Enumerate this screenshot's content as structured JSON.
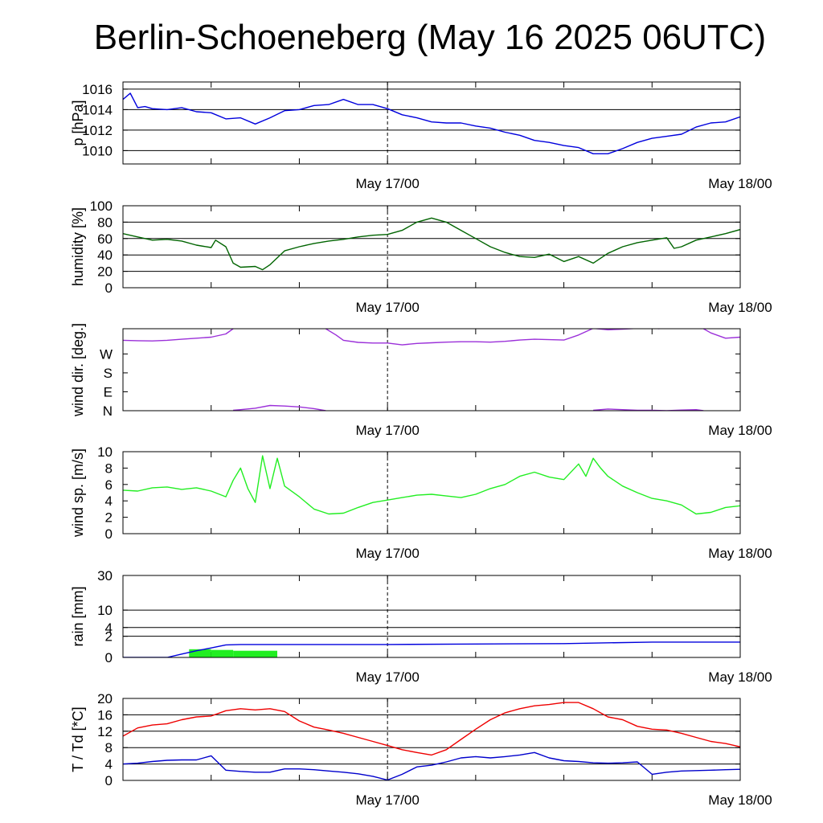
{
  "title": "Berlin-Schoeneberg (May 16 2025 06UTC)",
  "x_tick_labels": [
    "May 17/00",
    "May 18/00"
  ],
  "colors": {
    "pressure": "#0000dd",
    "humidity": "#006400",
    "wind_dir": "#9b30d9",
    "wind_speed": "#22ee22",
    "rain_cumulative": "#0000dd",
    "rain_bars": "#22ee22",
    "temperature": "#ee0000",
    "dewpoint": "#0000cc",
    "gridline": "#000000"
  },
  "chart_data": [
    {
      "type": "line",
      "ylabel": "p [hPa]",
      "ylim": [
        1008.7,
        1016.7
      ],
      "yticks": [
        1010,
        1012,
        1014,
        1016
      ],
      "ytick_labels": [
        "1010",
        "1012",
        "1014",
        "1016"
      ],
      "grid": true,
      "series": [
        {
          "key": "pressure",
          "x": [
            0,
            0.5,
            1,
            1.5,
            2,
            3,
            4,
            5,
            6,
            7,
            8,
            9,
            10,
            11,
            12,
            13,
            14,
            15,
            16,
            17,
            18,
            19,
            20,
            21,
            22,
            23,
            24,
            25,
            26,
            27,
            28,
            29,
            30,
            31,
            32,
            33,
            34,
            35,
            36,
            37,
            38,
            39,
            40,
            41,
            42
          ],
          "values": [
            1015.0,
            1015.6,
            1014.2,
            1014.3,
            1014.1,
            1014.0,
            1014.2,
            1013.8,
            1013.7,
            1013.1,
            1013.2,
            1012.6,
            1013.2,
            1013.9,
            1014.0,
            1014.4,
            1014.5,
            1015.0,
            1014.5,
            1014.5,
            1014.1,
            1013.5,
            1013.2,
            1012.8,
            1012.7,
            1012.7,
            1012.4,
            1012.2,
            1011.8,
            1011.5,
            1011.0,
            1010.8,
            1010.5,
            1010.3,
            1009.7,
            1009.7,
            1010.2,
            1010.8,
            1011.2,
            1011.4,
            1011.6,
            1012.3,
            1012.7,
            1012.8,
            1013.3
          ]
        }
      ]
    },
    {
      "type": "line",
      "ylabel": "humidity [%]",
      "ylim": [
        0,
        100
      ],
      "yticks": [
        0,
        20,
        40,
        60,
        80,
        100
      ],
      "ytick_labels": [
        "0",
        "20",
        "40",
        "60",
        "80",
        "100"
      ],
      "grid": true,
      "series": [
        {
          "key": "humidity",
          "x": [
            0,
            1,
            2,
            3,
            4,
            5,
            6,
            6.3,
            7,
            7.5,
            8,
            9,
            9.5,
            10,
            11,
            12,
            13,
            14,
            15,
            16,
            17,
            18,
            19,
            20,
            21,
            22,
            23,
            24,
            25,
            26,
            27,
            28,
            29,
            30,
            31,
            32,
            33,
            34,
            35,
            36,
            37,
            37.5,
            38,
            39,
            40,
            41,
            42
          ],
          "values": [
            66,
            62,
            58,
            59,
            57,
            52,
            49,
            58,
            50,
            30,
            25,
            26,
            22,
            28,
            45,
            50,
            54,
            57,
            59,
            62,
            64,
            65,
            70,
            80,
            85,
            80,
            70,
            60,
            50,
            43,
            38,
            37,
            41,
            32,
            38,
            30,
            42,
            50,
            55,
            58,
            61,
            48,
            50,
            58,
            62,
            66,
            71
          ]
        }
      ]
    },
    {
      "type": "line",
      "ylabel": "wind dir. [deg.]",
      "ylim": [
        0,
        390
      ],
      "yticks": [
        0,
        90,
        180,
        270
      ],
      "ytick_labels": [
        "N",
        "E",
        "S",
        "W"
      ],
      "grid": false,
      "series": [
        {
          "key": "wind_dir",
          "segments": [
            {
              "x": [
                0,
                1,
                2,
                3,
                4,
                5,
                6,
                7,
                7.5
              ],
              "values": [
                335,
                333,
                332,
                335,
                340,
                345,
                350,
                365,
                390
              ]
            },
            {
              "x": [
                7.5,
                8,
                9,
                10,
                11,
                12,
                13,
                13.8
              ],
              "values": [
                2,
                5,
                12,
                25,
                22,
                18,
                10,
                0
              ]
            },
            {
              "x": [
                13.8,
                14.5,
                15,
                16,
                17,
                18,
                19,
                20,
                21,
                22,
                23,
                24,
                25,
                26,
                27,
                28,
                29,
                30,
                31,
                32,
                33,
                34,
                35,
                36,
                36.5
              ],
              "values": [
                390,
                360,
                335,
                325,
                322,
                322,
                313,
                320,
                323,
                326,
                328,
                328,
                326,
                330,
                336,
                340,
                338,
                336,
                360,
                392,
                385,
                388,
                392,
                394,
                390
              ]
            },
            {
              "x": [
                32,
                33,
                34,
                35,
                36,
                37,
                38,
                39,
                39.5
              ],
              "values": [
                2,
                8,
                5,
                2,
                2,
                0,
                3,
                5,
                0
              ]
            },
            {
              "x": [
                39.5,
                40,
                41,
                42
              ],
              "values": [
                390,
                370,
                345,
                350
              ]
            }
          ]
        }
      ]
    },
    {
      "type": "line",
      "ylabel": "wind sp. [m/s]",
      "ylim": [
        0,
        10
      ],
      "yticks": [
        0,
        2,
        4,
        6,
        8,
        10
      ],
      "ytick_labels": [
        "0",
        "2",
        "4",
        "6",
        "8",
        "10"
      ],
      "grid": false,
      "series": [
        {
          "key": "wind_speed",
          "x": [
            0,
            1,
            2,
            3,
            4,
            5,
            6,
            7,
            7.5,
            8,
            8.5,
            9,
            9.5,
            10,
            10.5,
            11,
            12,
            13,
            14,
            15,
            16,
            17,
            18,
            19,
            20,
            21,
            22,
            23,
            24,
            25,
            26,
            27,
            28,
            29,
            30,
            31,
            31.5,
            32,
            32.5,
            33,
            34,
            35,
            36,
            37,
            38,
            39,
            40,
            41,
            42
          ],
          "values": [
            5.3,
            5.2,
            5.6,
            5.7,
            5.4,
            5.6,
            5.2,
            4.5,
            6.5,
            8.0,
            5.5,
            3.8,
            9.5,
            5.5,
            9.2,
            5.8,
            4.5,
            3.0,
            2.4,
            2.5,
            3.2,
            3.8,
            4.1,
            4.4,
            4.7,
            4.8,
            4.6,
            4.4,
            4.8,
            5.5,
            6.0,
            7.0,
            7.5,
            6.9,
            6.6,
            8.5,
            7.0,
            9.2,
            8.0,
            7.0,
            5.8,
            5.0,
            4.3,
            4.0,
            3.5,
            2.4,
            2.6,
            3.2,
            3.4
          ]
        }
      ]
    },
    {
      "type": "bar",
      "ylabel": "rain [mm]",
      "ylim": [
        0,
        30
      ],
      "yticks": [
        0,
        2,
        4,
        10,
        30
      ],
      "ytick_labels": [
        "0",
        "2",
        "4",
        "10",
        "30"
      ],
      "grid": true,
      "series": [
        {
          "key": "rain_cumulative",
          "x": [
            0,
            3,
            4,
            5,
            6,
            7,
            8,
            18,
            24,
            30,
            36,
            42
          ],
          "values": [
            0,
            0,
            0.05,
            0.2,
            0.4,
            0.7,
            0.75,
            0.75,
            0.8,
            0.85,
            1.05,
            1.05
          ]
        }
      ],
      "bars": [
        {
          "x_start": 4.5,
          "x_end": 6,
          "value": 0.3
        },
        {
          "x_start": 6,
          "x_end": 7.5,
          "value": 0.25
        },
        {
          "x_start": 7.5,
          "x_end": 10.5,
          "value": 0.2
        }
      ]
    },
    {
      "type": "line",
      "ylabel": "T / Td [*C]",
      "ylim": [
        0,
        20
      ],
      "yticks": [
        0,
        4,
        8,
        12,
        16,
        20
      ],
      "ytick_labels": [
        "0",
        "4",
        "8",
        "12",
        "16",
        "20"
      ],
      "grid": true,
      "series": [
        {
          "key": "temperature",
          "x": [
            0,
            1,
            2,
            3,
            4,
            5,
            6,
            7,
            8,
            9,
            10,
            11,
            12,
            13,
            14,
            15,
            16,
            17,
            18,
            19,
            20,
            21,
            22,
            23,
            24,
            25,
            26,
            27,
            28,
            29,
            30,
            31,
            32,
            33,
            34,
            35,
            36,
            37,
            38,
            39,
            40,
            41,
            42
          ],
          "values": [
            10.8,
            12.8,
            13.5,
            13.8,
            14.8,
            15.5,
            15.7,
            17.0,
            17.5,
            17.2,
            17.5,
            16.8,
            14.5,
            13.0,
            12.3,
            11.5,
            10.5,
            9.5,
            8.5,
            7.5,
            6.8,
            6.2,
            7.5,
            10.0,
            12.5,
            14.8,
            16.5,
            17.5,
            18.2,
            18.5,
            19.0,
            19.0,
            17.5,
            15.5,
            14.8,
            13.2,
            12.5,
            12.3,
            11.5,
            10.5,
            9.5,
            9.0,
            8.2
          ]
        },
        {
          "key": "dewpoint",
          "x": [
            0,
            1,
            2,
            3,
            4,
            5,
            6,
            7,
            8,
            9,
            10,
            11,
            12,
            13,
            14,
            15,
            16,
            17,
            18,
            19,
            20,
            21,
            22,
            23,
            24,
            25,
            26,
            27,
            28,
            29,
            30,
            31,
            32,
            33,
            34,
            35,
            36,
            37,
            38,
            39,
            40,
            41,
            42
          ],
          "values": [
            4.0,
            4.2,
            4.6,
            4.9,
            5.0,
            5.0,
            6.0,
            2.5,
            2.2,
            2.0,
            2.0,
            2.8,
            2.8,
            2.6,
            2.3,
            2.0,
            1.6,
            1.0,
            0.1,
            1.5,
            3.3,
            3.7,
            4.5,
            5.5,
            5.8,
            5.5,
            5.8,
            6.2,
            6.8,
            5.5,
            4.8,
            4.6,
            4.3,
            4.2,
            4.3,
            4.5,
            1.5,
            2.0,
            2.3,
            2.4,
            2.5,
            2.6,
            2.7
          ]
        }
      ]
    }
  ]
}
